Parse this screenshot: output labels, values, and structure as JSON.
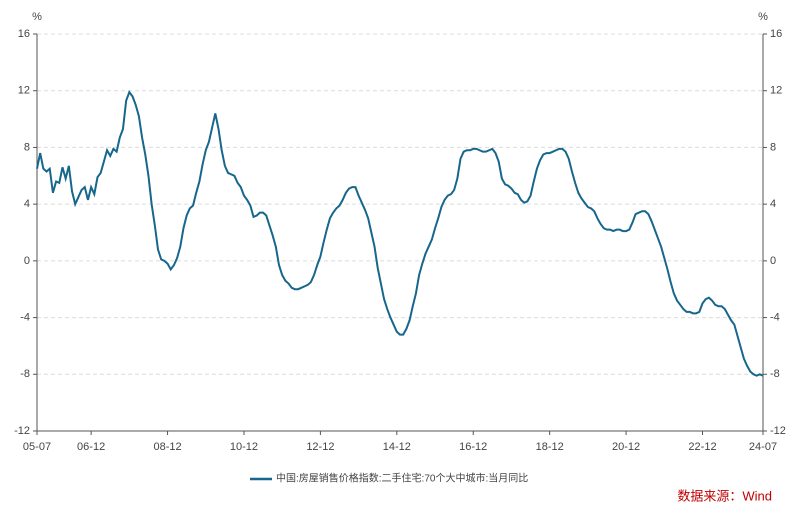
{
  "chart_data": {
    "type": "line",
    "y_unit": "%",
    "y2_unit": "%",
    "categories": [
      "05-07",
      null,
      null,
      null,
      null,
      null,
      null,
      null,
      null,
      null,
      null,
      null,
      null,
      null,
      null,
      null,
      null,
      "06-12",
      null,
      null,
      null,
      null,
      null,
      null,
      null,
      null,
      null,
      null,
      null,
      null,
      null,
      null,
      null,
      null,
      null,
      null,
      null,
      null,
      null,
      null,
      null,
      "08-12",
      null,
      null,
      null,
      null,
      null,
      null,
      null,
      null,
      null,
      null,
      null,
      null,
      null,
      null,
      null,
      null,
      null,
      null,
      null,
      null,
      null,
      null,
      null,
      "10-12",
      null,
      null,
      null,
      null,
      null,
      null,
      null,
      null,
      null,
      null,
      null,
      null,
      null,
      null,
      null,
      null,
      null,
      null,
      null,
      null,
      null,
      null,
      null,
      "12-12",
      null,
      null,
      null,
      null,
      null,
      null,
      null,
      null,
      null,
      null,
      null,
      null,
      null,
      null,
      null,
      null,
      null,
      null,
      null,
      null,
      null,
      null,
      null,
      "14-12",
      null,
      null,
      null,
      null,
      null,
      null,
      null,
      null,
      null,
      null,
      null,
      null,
      null,
      null,
      null,
      null,
      null,
      null,
      null,
      null,
      null,
      null,
      null,
      "16-12",
      null,
      null,
      null,
      null,
      null,
      null,
      null,
      null,
      null,
      null,
      null,
      null,
      null,
      null,
      null,
      null,
      null,
      null,
      null,
      null,
      null,
      null,
      null,
      "18-12",
      null,
      null,
      null,
      null,
      null,
      null,
      null,
      null,
      null,
      null,
      null,
      null,
      null,
      null,
      null,
      null,
      null,
      null,
      null,
      null,
      null,
      null,
      null,
      "20-12",
      null,
      null,
      null,
      null,
      null,
      null,
      null,
      null,
      null,
      null,
      null,
      null,
      null,
      null,
      null,
      null,
      null,
      null,
      null,
      null,
      null,
      null,
      null,
      "22-12",
      null,
      null,
      null,
      null,
      null,
      null,
      null,
      null,
      null,
      null,
      null,
      null,
      null,
      null,
      null,
      null,
      null,
      null,
      "24-07"
    ],
    "series": [
      {
        "name": "中国:房屋销售价格指数:二手住宅:70个大中城市:当月同比",
        "color": "#17668c",
        "values": [
          6.5,
          7.6,
          6.5,
          6.3,
          6.5,
          4.8,
          5.6,
          5.5,
          6.6,
          5.8,
          6.7,
          4.9,
          4.0,
          4.5,
          5.0,
          5.2,
          4.3,
          5.2,
          4.7,
          5.9,
          6.2,
          7.0,
          7.8,
          7.4,
          7.9,
          7.7,
          8.7,
          9.3,
          11.3,
          11.9,
          11.6,
          11.0,
          10.2,
          8.7,
          7.5,
          6.0,
          4.0,
          2.5,
          0.8,
          0.1,
          0,
          -0.2,
          -0.6,
          -0.3,
          0.2,
          1.0,
          2.3,
          3.2,
          3.7,
          3.9,
          4.8,
          5.6,
          6.8,
          7.8,
          8.4,
          9.4,
          10.4,
          9.3,
          7.8,
          6.7,
          6.2,
          6.1,
          6.0,
          5.5,
          5.2,
          4.6,
          4.3,
          3.9,
          3.1,
          3.2,
          3.4,
          3.4,
          3.2,
          2.5,
          1.8,
          1.0,
          -0.3,
          -1.0,
          -1.4,
          -1.6,
          -1.9,
          -2.0,
          -2.0,
          -1.9,
          -1.8,
          -1.7,
          -1.5,
          -1.0,
          -0.3,
          0.3,
          1.3,
          2.2,
          3.0,
          3.4,
          3.7,
          3.9,
          4.3,
          4.8,
          5.1,
          5.2,
          5.2,
          4.6,
          4.1,
          3.6,
          3.0,
          2.0,
          1.0,
          -0.5,
          -1.6,
          -2.7,
          -3.4,
          -4.0,
          -4.5,
          -5.0,
          -5.2,
          -5.2,
          -4.8,
          -4.2,
          -3.2,
          -2.3,
          -1.0,
          -0.2,
          0.5,
          1.0,
          1.5,
          2.3,
          3.0,
          3.8,
          4.3,
          4.6,
          4.7,
          5.0,
          5.8,
          7.2,
          7.7,
          7.8,
          7.8,
          7.9,
          7.9,
          7.8,
          7.7,
          7.7,
          7.8,
          7.9,
          7.6,
          7.0,
          5.8,
          5.4,
          5.3,
          5.1,
          4.8,
          4.7,
          4.3,
          4.1,
          4.2,
          4.6,
          5.6,
          6.5,
          7.1,
          7.5,
          7.6,
          7.6,
          7.7,
          7.8,
          7.9,
          7.9,
          7.7,
          7.2,
          6.3,
          5.5,
          4.8,
          4.4,
          4.1,
          3.8,
          3.7,
          3.5,
          3.0,
          2.6,
          2.3,
          2.2,
          2.2,
          2.1,
          2.2,
          2.2,
          2.1,
          2.1,
          2.2,
          2.7,
          3.3,
          3.4,
          3.5,
          3.5,
          3.3,
          2.8,
          2.2,
          1.6,
          1.0,
          0.2,
          -0.6,
          -1.5,
          -2.3,
          -2.8,
          -3.1,
          -3.4,
          -3.6,
          -3.6,
          -3.7,
          -3.7,
          -3.6,
          -3.0,
          -2.7,
          -2.6,
          -2.8,
          -3.1,
          -3.2,
          -3.2,
          -3.4,
          -3.8,
          -4.2,
          -4.5,
          -5.3,
          -6.1,
          -6.9,
          -7.4,
          -7.8,
          -8.0,
          -8.1,
          -8.0,
          -8.1
        ]
      }
    ],
    "ylim": [
      -12,
      16
    ],
    "yticks": [
      -12,
      -8,
      -4,
      0,
      4,
      8,
      12,
      16
    ],
    "y2lim": [
      -12,
      16
    ],
    "y2ticks": [
      -12,
      -8,
      -4,
      0,
      4,
      8,
      12,
      16
    ],
    "grid": true,
    "legend": "bottom",
    "source": "数据来源：Wind"
  }
}
